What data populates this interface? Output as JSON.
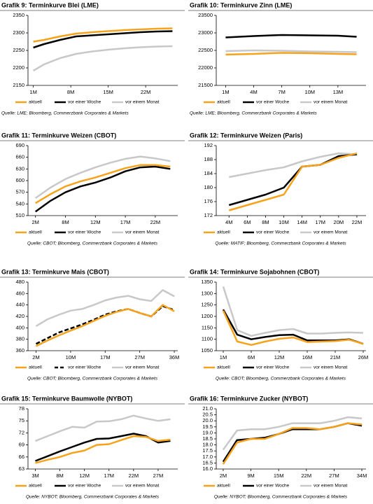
{
  "chart_data": [
    {
      "type": "line",
      "title": "Grafik 9: Terminkurve Blei (LME)",
      "source": "Quelle: LME; Bloomberg, Commerzbank Corporates & Markets",
      "x": [
        1,
        3,
        6,
        9,
        12,
        15,
        18,
        21,
        24,
        27
      ],
      "xlim": [
        0,
        28
      ],
      "xticks": [
        {
          "value": 1,
          "label": "1M"
        },
        {
          "value": 8,
          "label": "8M"
        },
        {
          "value": 15,
          "label": "15M"
        },
        {
          "value": 22,
          "label": "22M"
        }
      ],
      "ylim": [
        2150,
        2350
      ],
      "yticks": [
        2150,
        2200,
        2250,
        2300,
        2350
      ],
      "series": [
        {
          "name": "aktuell",
          "color": "#f7a21b",
          "values": [
            2275,
            2280,
            2290,
            2298,
            2302,
            2305,
            2308,
            2310,
            2312,
            2313
          ]
        },
        {
          "name": "vor einer Woche",
          "color": "#000000",
          "values": [
            2258,
            2268,
            2280,
            2290,
            2293,
            2296,
            2299,
            2302,
            2304,
            2305
          ]
        },
        {
          "name": "vor einem Monat",
          "color": "#c8c8c8",
          "values": [
            2192,
            2210,
            2228,
            2240,
            2247,
            2252,
            2256,
            2259,
            2261,
            2262
          ]
        }
      ]
    },
    {
      "type": "line",
      "title": "Grafik 10: Terminkurve Zinn (LME)",
      "source": "Quelle: LME; Bloomberg, Commerzbank Corporates & Markets",
      "x": [
        1,
        4,
        7,
        10,
        13,
        15
      ],
      "xlim": [
        0,
        16
      ],
      "xticks": [
        {
          "value": 1,
          "label": "1M"
        },
        {
          "value": 4,
          "label": "4M"
        },
        {
          "value": 7,
          "label": "7M"
        },
        {
          "value": 10,
          "label": "10M"
        },
        {
          "value": 13,
          "label": "13M"
        }
      ],
      "ylim": [
        21500,
        23500
      ],
      "yticks": [
        21500,
        22000,
        22500,
        23000,
        23500
      ],
      "series": [
        {
          "name": "aktuell",
          "color": "#f7a21b",
          "values": [
            22380,
            22400,
            22430,
            22420,
            22400,
            22390
          ]
        },
        {
          "name": "vor einer Woche",
          "color": "#000000",
          "values": [
            22870,
            22910,
            22940,
            22930,
            22920,
            22890
          ]
        },
        {
          "name": "vor einem Monat",
          "color": "#c8c8c8",
          "values": [
            22480,
            22500,
            22490,
            22470,
            22460,
            22450
          ]
        }
      ]
    },
    {
      "type": "line",
      "title": "Grafik 11: Terminkurve Weizen (CBOT)",
      "source": "Quelle: CBOT; Bloomberg, Commerzbank Corporates & Markets",
      "x": [
        1,
        2,
        3,
        4,
        5,
        6,
        7,
        8,
        9,
        10
      ],
      "xlim": [
        0.5,
        10.5
      ],
      "xticks": [
        {
          "value": 1,
          "label": "2M"
        },
        {
          "value": 3,
          "label": "8M"
        },
        {
          "value": 5,
          "label": "12M"
        },
        {
          "value": 7,
          "label": "17M"
        },
        {
          "value": 9,
          "label": "22M"
        }
      ],
      "ylim": [
        510,
        690
      ],
      "yticks": [
        510,
        540,
        570,
        600,
        630,
        660,
        690
      ],
      "series": [
        {
          "name": "aktuell",
          "color": "#f7a21b",
          "values": [
            542,
            565,
            585,
            598,
            608,
            620,
            632,
            640,
            640,
            636
          ]
        },
        {
          "name": "vor einer Woche",
          "color": "#000000",
          "values": [
            520,
            548,
            570,
            585,
            595,
            608,
            624,
            634,
            636,
            630
          ]
        },
        {
          "name": "vor einem Monat",
          "color": "#c8c8c8",
          "values": [
            555,
            582,
            604,
            620,
            634,
            646,
            656,
            662,
            657,
            650
          ]
        }
      ]
    },
    {
      "type": "line",
      "title": "Grafik 12: Terminkurve Weizen (Paris)",
      "source": "Quelle: MATIF; Bloomberg, Commerzbank Corporates & Markets",
      "x": [
        1,
        2,
        3,
        4,
        5,
        6,
        7,
        8
      ],
      "xlim": [
        0.3,
        8.5
      ],
      "xticks": [
        {
          "value": 1,
          "label": "4M"
        },
        {
          "value": 2,
          "label": "6M"
        },
        {
          "value": 3,
          "label": "8M"
        },
        {
          "value": 4,
          "label": "10M"
        },
        {
          "value": 5,
          "label": "14M"
        },
        {
          "value": 6,
          "label": "17M"
        },
        {
          "value": 7,
          "label": "20M"
        },
        {
          "value": 8,
          "label": "22M"
        }
      ],
      "ylim": [
        172,
        192
      ],
      "yticks": [
        172,
        176,
        180,
        184,
        188,
        192
      ],
      "series": [
        {
          "name": "aktuell",
          "color": "#f7a21b",
          "values": [
            173.5,
            175,
            176.5,
            178,
            186,
            186.5,
            188.5,
            189.8
          ]
        },
        {
          "name": "vor einer Woche",
          "color": "#000000",
          "values": [
            175,
            176.5,
            178,
            180,
            186,
            186.5,
            189,
            189.5
          ]
        },
        {
          "name": "vor einem Monat",
          "color": "#c8c8c8",
          "values": [
            183,
            184,
            185,
            185.8,
            187.5,
            188.8,
            189.8,
            189.5
          ]
        }
      ]
    },
    {
      "type": "line",
      "title": "Grafik 13: Terminkurve Mais (CBOT)",
      "source": "Quelle: CBOT; Bloomberg, Commerzbank Corporates & Markets",
      "x": [
        1,
        2,
        3,
        4,
        5,
        6,
        7,
        8,
        9,
        10,
        11,
        12,
        13
      ],
      "xlim": [
        0.3,
        13.3
      ],
      "xticks": [
        {
          "value": 1,
          "label": "2M"
        },
        {
          "value": 4,
          "label": "10M"
        },
        {
          "value": 7,
          "label": "17M"
        },
        {
          "value": 10,
          "label": "27M"
        },
        {
          "value": 13,
          "label": "36M"
        }
      ],
      "ylim": [
        360,
        480
      ],
      "yticks": [
        360,
        380,
        400,
        420,
        440,
        460,
        480
      ],
      "series": [
        {
          "name": "aktuell",
          "color": "#f7a21b",
          "values": [
            368,
            378,
            387,
            395,
            403,
            412,
            421,
            428,
            433,
            426,
            420,
            440,
            429
          ]
        },
        {
          "name": "vor einer Woche",
          "color": "#000000",
          "dash": true,
          "values": [
            372,
            382,
            392,
            399,
            406,
            414,
            423,
            429,
            433,
            426,
            420,
            438,
            431
          ]
        },
        {
          "name": "vor einem Monat",
          "color": "#c8c8c8",
          "values": [
            403,
            415,
            423,
            430,
            433,
            440,
            448,
            453,
            456,
            450,
            447,
            466,
            455
          ]
        }
      ]
    },
    {
      "type": "line",
      "title": "Grafik 14: Terminkurve Sojabohnen (CBOT)",
      "source": "Quelle: CBOT; Bloomberg, Commerzbank Corporates & Markets",
      "x": [
        1,
        2,
        3,
        4,
        5,
        6,
        7,
        8,
        9,
        10,
        11
      ],
      "xlim": [
        0.5,
        11.2
      ],
      "xticks": [
        {
          "value": 1,
          "label": "1M"
        },
        {
          "value": 3,
          "label": "6M"
        },
        {
          "value": 5,
          "label": "12M"
        },
        {
          "value": 7,
          "label": "16M"
        },
        {
          "value": 9,
          "label": "21M"
        },
        {
          "value": 11,
          "label": "26M"
        }
      ],
      "ylim": [
        1050,
        1350
      ],
      "yticks": [
        1050,
        1100,
        1150,
        1200,
        1250,
        1300,
        1350
      ],
      "series": [
        {
          "name": "aktuell",
          "color": "#f7a21b",
          "values": [
            1225,
            1090,
            1075,
            1090,
            1102,
            1108,
            1088,
            1090,
            1092,
            1098,
            1080
          ]
        },
        {
          "name": "vor einer Woche",
          "color": "#000000",
          "values": [
            1230,
            1120,
            1100,
            1110,
            1118,
            1120,
            1095,
            1095,
            1095,
            1100,
            1080
          ]
        },
        {
          "name": "vor einem Monat",
          "color": "#c8c8c8",
          "values": [
            1330,
            1140,
            1115,
            1128,
            1140,
            1145,
            1125,
            1125,
            1128,
            1130,
            1128
          ]
        }
      ]
    },
    {
      "type": "line",
      "title": "Grafik 15: Terminkurve Baumwolle (NYBOT)",
      "source": "Quelle: NYBOT; Bloomberg, Commerzbank Corporates & Markets",
      "x": [
        1,
        2,
        3,
        4,
        5,
        6,
        7,
        8,
        9,
        10,
        11,
        12
      ],
      "xlim": [
        0.4,
        12.6
      ],
      "xticks": [
        {
          "value": 1,
          "label": "3M"
        },
        {
          "value": 3,
          "label": "8M"
        },
        {
          "value": 5,
          "label": "12M"
        },
        {
          "value": 7,
          "label": "17M"
        },
        {
          "value": 9,
          "label": "22M"
        },
        {
          "value": 11,
          "label": "27M"
        }
      ],
      "ylim": [
        63,
        78
      ],
      "yticks": [
        63,
        66,
        69,
        72,
        75,
        78
      ],
      "series": [
        {
          "name": "aktuell",
          "color": "#f7a21b",
          "values": [
            64.5,
            65.3,
            66,
            67,
            67.6,
            69,
            69.2,
            70.2,
            71.2,
            71,
            70,
            70.3
          ]
        },
        {
          "name": "vor einer Woche",
          "color": "#000000",
          "values": [
            65,
            66.2,
            67.4,
            68.5,
            69.6,
            70.5,
            70.6,
            71.2,
            71.8,
            71.2,
            69.6,
            70
          ]
        },
        {
          "name": "vor einem Monat",
          "color": "#c8c8c8",
          "values": [
            70,
            71.2,
            72.4,
            73.5,
            73.3,
            74.8,
            74.9,
            75.4,
            76.3,
            75.6,
            75,
            75.4
          ]
        }
      ]
    },
    {
      "type": "line",
      "title": "Grafik 16: Terminkurve Zucker (NYBOT)",
      "source": "Quelle: NYBOT; Bloomberg, Commerzbank Corporates & Markets",
      "x": [
        1,
        2,
        3,
        4,
        5,
        6,
        7,
        8,
        9,
        10,
        11
      ],
      "xlim": [
        0.5,
        11.3
      ],
      "xticks": [
        {
          "value": 1,
          "label": "2M"
        },
        {
          "value": 3,
          "label": "9M"
        },
        {
          "value": 5,
          "label": "15M"
        },
        {
          "value": 7,
          "label": "22M"
        },
        {
          "value": 9,
          "label": "27M"
        },
        {
          "value": 11,
          "label": "34M"
        }
      ],
      "ylim": [
        16,
        21
      ],
      "yticks": [
        {
          "value": 16,
          "label": "16.0"
        },
        {
          "value": 16.5,
          "label": "16.5"
        },
        {
          "value": 17,
          "label": "17.0"
        },
        {
          "value": 17.5,
          "label": "17.5"
        },
        {
          "value": 18,
          "label": "18.0"
        },
        {
          "value": 18.5,
          "label": "18.5"
        },
        {
          "value": 19,
          "label": "19.0"
        },
        {
          "value": 19.5,
          "label": "19.5"
        },
        {
          "value": 20,
          "label": "20.0"
        },
        {
          "value": 20.5,
          "label": "20.5"
        },
        {
          "value": 21,
          "label": "21.0"
        }
      ],
      "series": [
        {
          "name": "aktuell",
          "color": "#f7a21b",
          "values": [
            16.4,
            18.2,
            18.5,
            18.5,
            18.9,
            19.4,
            19.4,
            19.3,
            19.5,
            19.8,
            19.7
          ]
        },
        {
          "name": "vor einer Woche",
          "color": "#000000",
          "values": [
            16.6,
            18.4,
            18.5,
            18.6,
            18.9,
            19.3,
            19.3,
            19.3,
            19.5,
            19.8,
            19.6
          ]
        },
        {
          "name": "vor einem Monat",
          "color": "#c8c8c8",
          "values": [
            17.6,
            19.2,
            19.3,
            19.3,
            19.5,
            19.8,
            19.8,
            19.8,
            20.0,
            20.3,
            20.2
          ]
        }
      ]
    }
  ]
}
